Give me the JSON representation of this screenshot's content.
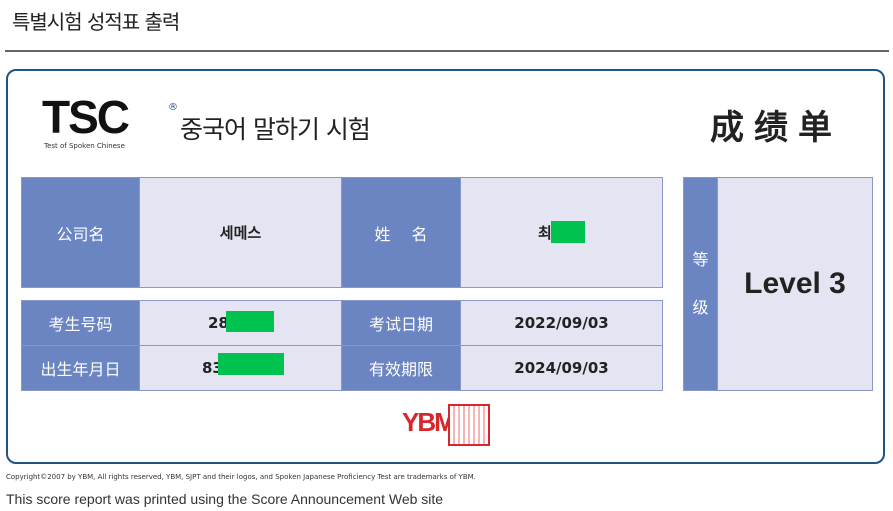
{
  "page_title": "특별시험 성적표 출력",
  "logo": {
    "brand": "TSC",
    "brand_sub": "Test of Spoken Chinese",
    "registered": "®",
    "name_kr": "중국어 말하기 시험"
  },
  "doc_title": "成绩单",
  "fields": {
    "company_label": "公司名",
    "company_value": "세메스",
    "name_label": "姓　 名",
    "name_value": "최",
    "exam_no_label": "考生号码",
    "exam_no_value": "28",
    "exam_date_label": "考试日期",
    "exam_date_value": "2022/09/03",
    "birth_label": "出生年月日",
    "birth_value": "83",
    "valid_label": "有效期限",
    "valid_value": "2024/09/03",
    "grade_label": "等\n\n\n级",
    "grade_value": "Level 3"
  },
  "stamp": {
    "ybm": "YBM"
  },
  "redaction_color": "#00c24e",
  "footer": {
    "copyright": "Copyright©2007 by YBM, All rights reserved, YBM, SJPT and their logos, and Spoken Japanese Proficiency Test are trademarks of YBM.",
    "note": "This score report was printed using the Score Announcement Web site"
  }
}
